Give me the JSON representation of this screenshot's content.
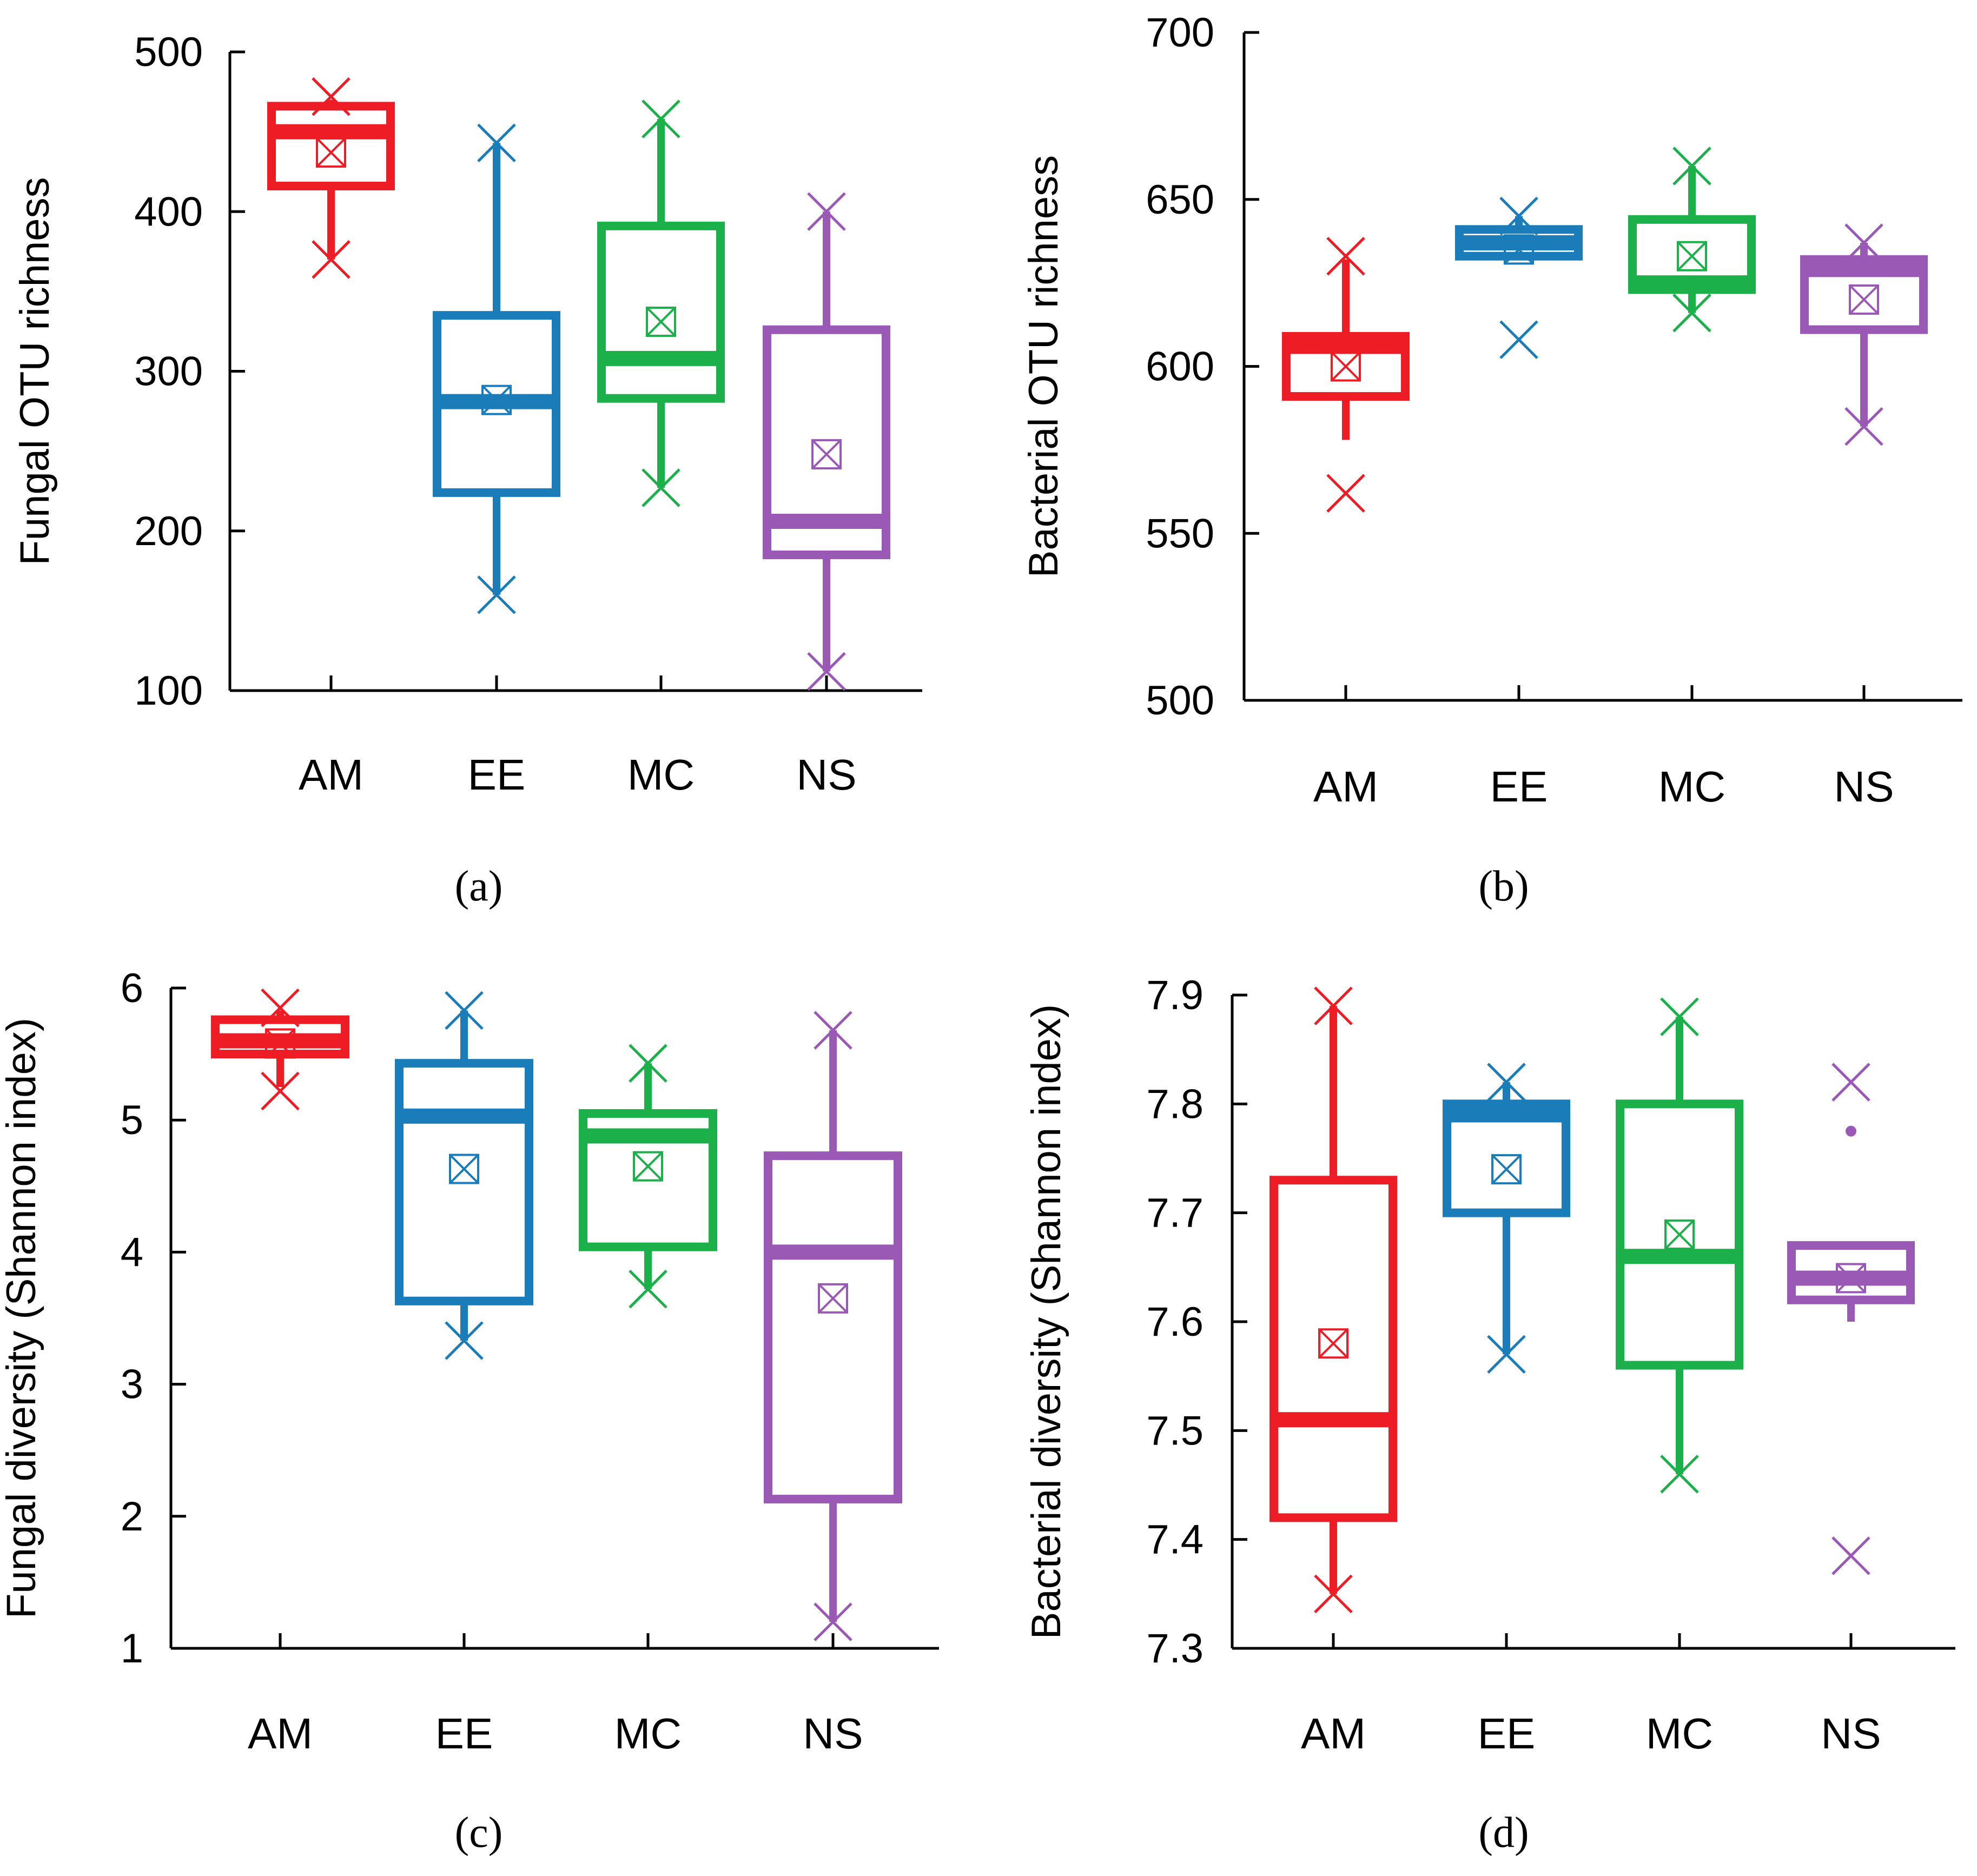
{
  "chart_data": [
    {
      "type": "box",
      "panel_label": "(a)",
      "ylabel": "Fungal OTU richness",
      "ylim": [
        100,
        500
      ],
      "yticks": [
        100,
        200,
        300,
        400,
        500
      ],
      "categories": [
        "AM",
        "EE",
        "MC",
        "NS"
      ],
      "boxes": [
        {
          "name": "AM",
          "color": "#ee1c25",
          "whisker_low": 370,
          "q1": 416,
          "median": 450,
          "q3": 466,
          "whisker_high": 470,
          "mean": 437,
          "low_marker": 370,
          "high_marker": 472
        },
        {
          "name": "EE",
          "color": "#1a7cb8",
          "whisker_low": 160,
          "q1": 224,
          "median": 281,
          "q3": 335,
          "whisker_high": 443,
          "mean": 282,
          "low_marker": 160,
          "high_marker": 443
        },
        {
          "name": "MC",
          "color": "#1bb04a",
          "whisker_low": 227,
          "q1": 283,
          "median": 308,
          "q3": 391,
          "whisker_high": 458,
          "mean": 331,
          "low_marker": 227,
          "high_marker": 458
        },
        {
          "name": "NS",
          "color": "#9b59b6",
          "whisker_low": 112,
          "q1": 185,
          "median": 206,
          "q3": 326,
          "whisker_high": 400,
          "mean": 248,
          "low_marker": 112,
          "high_marker": 400
        }
      ]
    },
    {
      "type": "box",
      "panel_label": "(b)",
      "ylabel": "Bacterial OTU richness",
      "ylim": [
        500,
        700
      ],
      "yticks": [
        500,
        550,
        600,
        650,
        700
      ],
      "categories": [
        "AM",
        "EE",
        "MC",
        "NS"
      ],
      "boxes": [
        {
          "name": "AM",
          "color": "#ee1c25",
          "whisker_low": 578,
          "q1": 591,
          "median": 606,
          "q3": 609,
          "whisker_high": 632,
          "mean": 600,
          "low_marker": 562,
          "high_marker": 633
        },
        {
          "name": "EE",
          "color": "#1a7cb8",
          "whisker_low": 632,
          "q1": 633,
          "median": 637,
          "q3": 641,
          "whisker_high": 645,
          "mean": 635,
          "low_marker": 608,
          "high_marker": 645
        },
        {
          "name": "MC",
          "color": "#1bb04a",
          "whisker_low": 616,
          "q1": 623,
          "median": 625,
          "q3": 644,
          "whisker_high": 660,
          "mean": 633,
          "low_marker": 616,
          "high_marker": 660
        },
        {
          "name": "NS",
          "color": "#9b59b6",
          "whisker_low": 582,
          "q1": 611,
          "median": 629,
          "q3": 632,
          "whisker_high": 637,
          "mean": 620,
          "low_marker": 582,
          "high_marker": 637
        }
      ]
    },
    {
      "type": "box",
      "panel_label": "(c)",
      "ylabel": "Fungal diversity (Shannon index)",
      "ylim": [
        1,
        6
      ],
      "yticks": [
        1,
        2,
        3,
        4,
        5,
        6
      ],
      "categories": [
        "AM",
        "EE",
        "MC",
        "NS"
      ],
      "boxes": [
        {
          "name": "AM",
          "color": "#ee1c25",
          "whisker_low": 5.25,
          "q1": 5.5,
          "median": 5.6,
          "q3": 5.76,
          "whisker_high": 5.83,
          "mean": 5.58,
          "low_marker": 5.22,
          "high_marker": 5.85
        },
        {
          "name": "EE",
          "color": "#1a7cb8",
          "whisker_low": 3.33,
          "q1": 3.63,
          "median": 5.03,
          "q3": 5.43,
          "whisker_high": 5.83,
          "mean": 4.63,
          "low_marker": 3.33,
          "high_marker": 5.83
        },
        {
          "name": "MC",
          "color": "#1bb04a",
          "whisker_low": 3.72,
          "q1": 4.04,
          "median": 4.88,
          "q3": 5.05,
          "whisker_high": 5.43,
          "mean": 4.65,
          "low_marker": 3.72,
          "high_marker": 5.43
        },
        {
          "name": "NS",
          "color": "#9b59b6",
          "whisker_low": 1.2,
          "q1": 2.13,
          "median": 4.0,
          "q3": 4.73,
          "whisker_high": 5.68,
          "mean": 3.65,
          "low_marker": 1.2,
          "high_marker": 5.68
        }
      ]
    },
    {
      "type": "box",
      "panel_label": "(d)",
      "ylabel": "Bacterial diversity (Shannon index)",
      "ylim": [
        7.3,
        7.9
      ],
      "yticks": [
        7.3,
        7.4,
        7.5,
        7.6,
        7.7,
        7.8,
        7.9
      ],
      "categories": [
        "AM",
        "EE",
        "MC",
        "NS"
      ],
      "boxes": [
        {
          "name": "AM",
          "color": "#ee1c25",
          "whisker_low": 7.35,
          "q1": 7.42,
          "median": 7.51,
          "q3": 7.73,
          "whisker_high": 7.89,
          "mean": 7.58,
          "low_marker": 7.35,
          "high_marker": 7.89
        },
        {
          "name": "EE",
          "color": "#1a7cb8",
          "whisker_low": 7.57,
          "q1": 7.7,
          "median": 7.79,
          "q3": 7.8,
          "whisker_high": 7.82,
          "mean": 7.74,
          "low_marker": 7.57,
          "high_marker": 7.82
        },
        {
          "name": "MC",
          "color": "#1bb04a",
          "whisker_low": 7.46,
          "q1": 7.56,
          "median": 7.66,
          "q3": 7.8,
          "whisker_high": 7.88,
          "mean": 7.68,
          "low_marker": 7.46,
          "high_marker": 7.88
        },
        {
          "name": "NS",
          "color": "#9b59b6",
          "whisker_low": 7.6,
          "q1": 7.62,
          "median": 7.64,
          "q3": 7.67,
          "whisker_high": 7.67,
          "mean": 7.64,
          "low_marker": 7.385,
          "high_marker": 7.82,
          "outlier_point": 7.775
        }
      ]
    }
  ]
}
